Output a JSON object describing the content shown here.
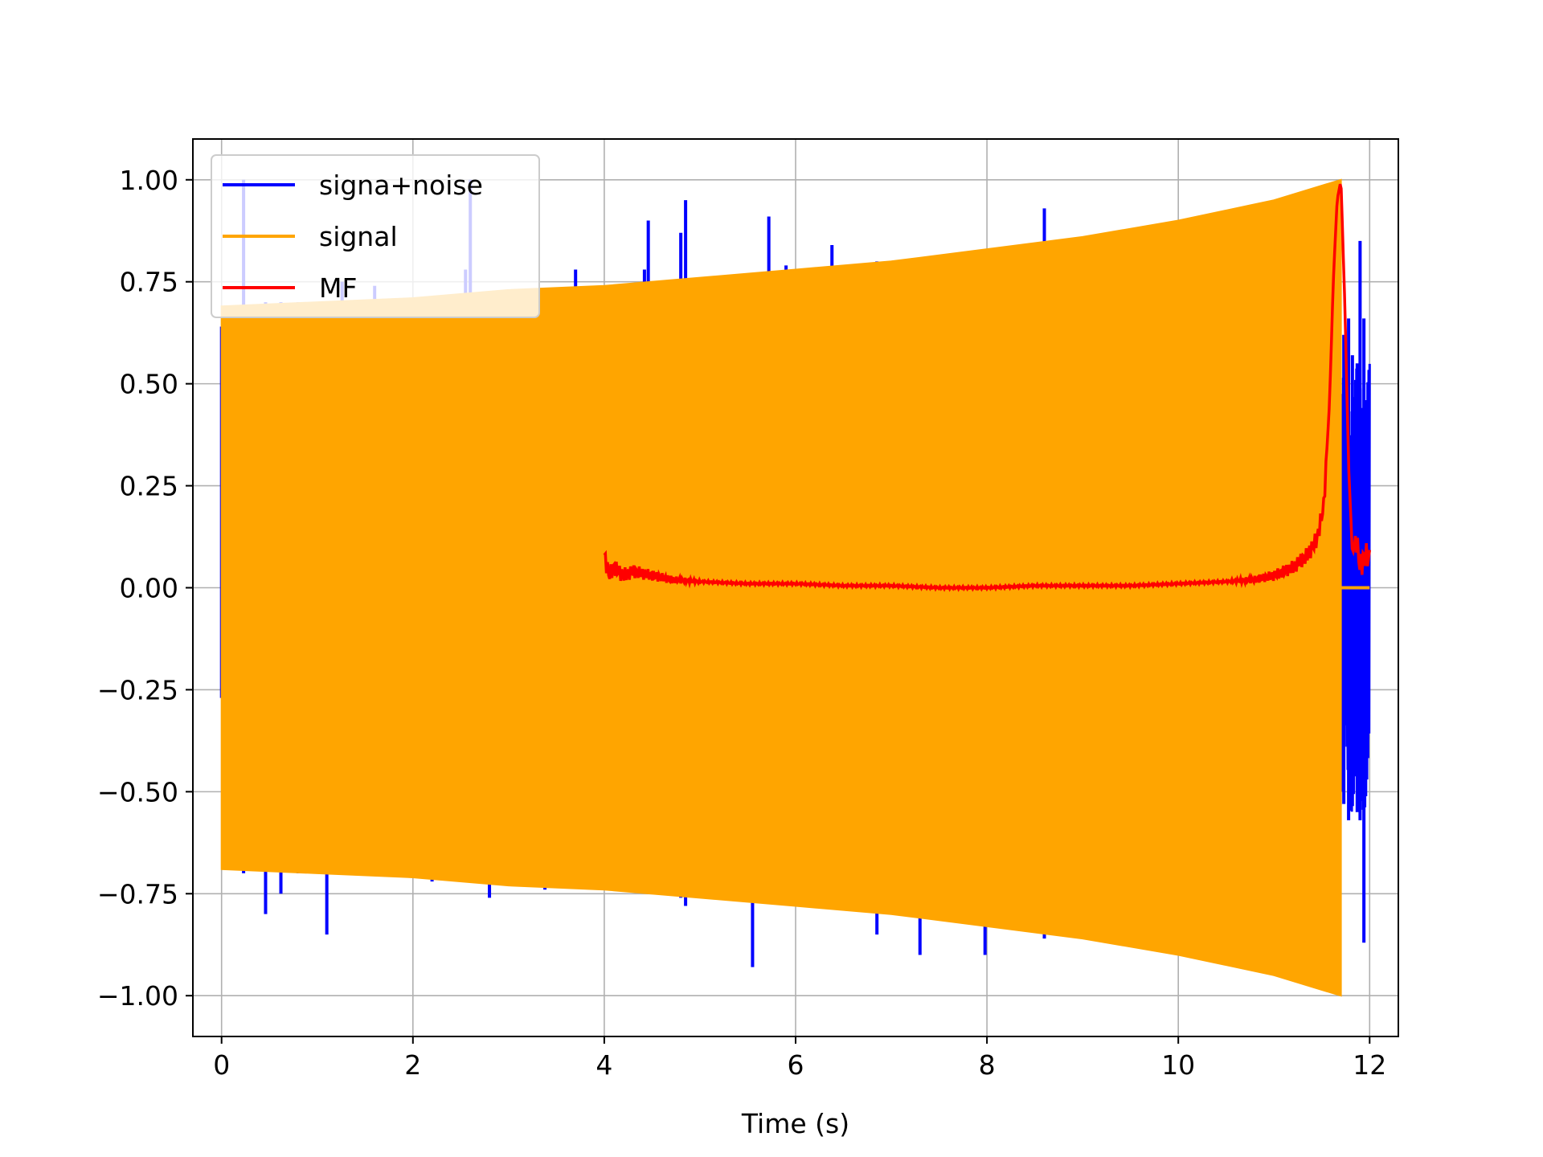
{
  "chart_data": {
    "type": "line",
    "title": "",
    "xlabel": "Time (s)",
    "ylabel": "",
    "xlim": [
      -0.3,
      12.3
    ],
    "ylim": [
      -1.1,
      1.1
    ],
    "x_ticks": [
      0,
      2,
      4,
      6,
      8,
      10,
      12
    ],
    "x_tick_labels": [
      "0",
      "2",
      "4",
      "6",
      "8",
      "10",
      "12"
    ],
    "y_ticks": [
      -1.0,
      -0.75,
      -0.5,
      -0.25,
      0.0,
      0.25,
      0.5,
      0.75,
      1.0
    ],
    "y_tick_labels": [
      "−1.00",
      "−0.75",
      "−0.50",
      "−0.25",
      "0.00",
      "0.25",
      "0.50",
      "0.75",
      "1.00"
    ],
    "grid": true,
    "legend_position": "upper-left",
    "series": [
      {
        "name": "signa+noise",
        "color": "#0000ff",
        "description_kind": "noisy chirp with spikes",
        "spikes": [
          {
            "x": 0.0,
            "ymin": -0.27,
            "ymax": 0.64
          },
          {
            "x": 0.23,
            "ymin": -0.7,
            "ymax": 1.0
          },
          {
            "x": 0.46,
            "ymin": -0.8,
            "ymax": 0.7
          },
          {
            "x": 0.62,
            "ymin": -0.75,
            "ymax": 0.7
          },
          {
            "x": 0.8,
            "ymin": -0.7,
            "ymax": 0.7
          },
          {
            "x": 1.1,
            "ymin": -0.85,
            "ymax": 0.7
          },
          {
            "x": 1.26,
            "ymin": -0.7,
            "ymax": 0.75
          },
          {
            "x": 1.6,
            "ymin": -0.7,
            "ymax": 0.74
          },
          {
            "x": 2.2,
            "ymin": -0.72,
            "ymax": 0.7
          },
          {
            "x": 2.55,
            "ymin": -0.7,
            "ymax": 0.78
          },
          {
            "x": 2.6,
            "ymin": -0.72,
            "ymax": 1.0
          },
          {
            "x": 2.8,
            "ymin": -0.76,
            "ymax": 0.7
          },
          {
            "x": 3.38,
            "ymin": -0.74,
            "ymax": 0.7
          },
          {
            "x": 3.7,
            "ymin": -0.72,
            "ymax": 0.78
          },
          {
            "x": 3.95,
            "ymin": -0.72,
            "ymax": 0.74
          },
          {
            "x": 4.42,
            "ymin": -0.74,
            "ymax": 0.78
          },
          {
            "x": 4.46,
            "ymin": -0.74,
            "ymax": 0.9
          },
          {
            "x": 4.8,
            "ymin": -0.76,
            "ymax": 0.87
          },
          {
            "x": 4.85,
            "ymin": -0.78,
            "ymax": 0.95
          },
          {
            "x": 5.55,
            "ymin": -0.93,
            "ymax": 0.76
          },
          {
            "x": 5.72,
            "ymin": -0.76,
            "ymax": 0.91
          },
          {
            "x": 5.9,
            "ymin": -0.76,
            "ymax": 0.79
          },
          {
            "x": 6.38,
            "ymin": -0.78,
            "ymax": 0.84
          },
          {
            "x": 6.85,
            "ymin": -0.85,
            "ymax": 0.8
          },
          {
            "x": 7.3,
            "ymin": -0.9,
            "ymax": 0.8
          },
          {
            "x": 7.98,
            "ymin": -0.9,
            "ymax": 0.83
          },
          {
            "x": 8.6,
            "ymin": -0.86,
            "ymax": 0.93
          },
          {
            "x": 11.68,
            "ymin": -0.49,
            "ymax": 0.53
          },
          {
            "x": 11.73,
            "ymin": -0.53,
            "ymax": 0.62
          },
          {
            "x": 11.78,
            "ymin": -0.57,
            "ymax": 0.66
          },
          {
            "x": 11.82,
            "ymin": -0.5,
            "ymax": 0.57
          },
          {
            "x": 11.87,
            "ymin": -0.55,
            "ymax": 0.55
          },
          {
            "x": 11.9,
            "ymin": -0.57,
            "ymax": 0.85
          },
          {
            "x": 11.94,
            "ymin": -0.87,
            "ymax": 0.66
          },
          {
            "x": 11.98,
            "ymin": -0.37,
            "ymax": 0.42
          }
        ]
      },
      {
        "name": "signal",
        "color": "#ffa500",
        "description_kind": "chirp envelope",
        "envelope": {
          "x": [
            0.0,
            1.0,
            2.0,
            3.0,
            4.0,
            5.0,
            6.0,
            7.0,
            8.0,
            9.0,
            10.0,
            11.0,
            11.7
          ],
          "upper": [
            0.69,
            0.7,
            0.71,
            0.73,
            0.74,
            0.76,
            0.78,
            0.8,
            0.83,
            0.86,
            0.9,
            0.95,
            1.0
          ],
          "lower": [
            -0.69,
            -0.7,
            -0.71,
            -0.73,
            -0.74,
            -0.76,
            -0.78,
            -0.8,
            -0.83,
            -0.86,
            -0.9,
            -0.95,
            -1.0
          ]
        },
        "tail": {
          "x": [
            11.7,
            12.0
          ],
          "y": [
            0.0,
            0.0
          ]
        }
      },
      {
        "name": "MF",
        "color": "#ff0000",
        "description_kind": "matched filter output",
        "x": [
          4.0,
          4.05,
          4.1,
          4.2,
          4.3,
          4.5,
          4.7,
          5.0,
          5.5,
          6.0,
          6.5,
          7.0,
          7.5,
          8.0,
          8.5,
          9.0,
          9.5,
          10.0,
          10.5,
          10.8,
          11.0,
          11.2,
          11.35,
          11.45,
          11.52,
          11.58,
          11.62,
          11.66,
          11.7,
          11.74,
          11.78,
          11.82,
          11.86,
          11.9,
          11.95,
          12.0
        ],
        "y": [
          0.08,
          0.03,
          0.05,
          0.03,
          0.04,
          0.03,
          0.02,
          0.015,
          0.01,
          0.01,
          0.005,
          0.005,
          0.0,
          0.0,
          0.005,
          0.005,
          0.005,
          0.01,
          0.015,
          0.02,
          0.03,
          0.05,
          0.08,
          0.12,
          0.2,
          0.45,
          0.75,
          0.95,
          1.0,
          0.7,
          0.3,
          0.08,
          0.12,
          0.05,
          0.08,
          0.07
        ]
      }
    ]
  }
}
